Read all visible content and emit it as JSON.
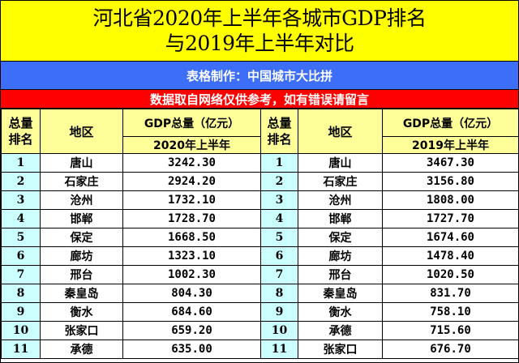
{
  "title": {
    "line1": "河北省2020年上半年各城市GDP排名",
    "line2": "与2019年上半年对比"
  },
  "credit": "表格制作：中国城市大比拼",
  "note": "数据取自网络仅供参考，如有错误请留言",
  "colors": {
    "title_bg": "#ffff00",
    "credit_bg": "#3d6ef7",
    "note_bg": "#ff0000",
    "header_bg": "#ffff99",
    "rank_bg": "#ccffff"
  },
  "left": {
    "headers": {
      "rank_line1": "总量",
      "rank_line2": "排名",
      "region": "地区",
      "gdp": "GDP总量（亿元）",
      "period": "2020年上半年"
    },
    "rows": [
      {
        "rank": "1",
        "city": "唐山",
        "value": "3242.30"
      },
      {
        "rank": "2",
        "city": "石家庄",
        "value": "2924.20"
      },
      {
        "rank": "3",
        "city": "沧州",
        "value": "1732.10"
      },
      {
        "rank": "4",
        "city": "邯郸",
        "value": "1728.70"
      },
      {
        "rank": "5",
        "city": "保定",
        "value": "1668.50"
      },
      {
        "rank": "6",
        "city": "廊坊",
        "value": "1323.10"
      },
      {
        "rank": "7",
        "city": "邢台",
        "value": "1002.30"
      },
      {
        "rank": "8",
        "city": "秦皇岛",
        "value": "804.30"
      },
      {
        "rank": "9",
        "city": "衡水",
        "value": "684.60"
      },
      {
        "rank": "10",
        "city": "张家口",
        "value": "659.20"
      },
      {
        "rank": "11",
        "city": "承德",
        "value": "635.00"
      }
    ]
  },
  "right": {
    "headers": {
      "rank_line1": "总量",
      "rank_line2": "排名",
      "region": "地区",
      "gdp": "GDP总量（亿元）",
      "period": "2019年上半年"
    },
    "rows": [
      {
        "rank": "1",
        "city": "唐山",
        "value": "3467.30"
      },
      {
        "rank": "2",
        "city": "石家庄",
        "value": "3156.80"
      },
      {
        "rank": "3",
        "city": "沧州",
        "value": "1808.00"
      },
      {
        "rank": "4",
        "city": "邯郸",
        "value": "1727.70"
      },
      {
        "rank": "5",
        "city": "保定",
        "value": "1674.60"
      },
      {
        "rank": "6",
        "city": "廊坊",
        "value": "1478.40"
      },
      {
        "rank": "7",
        "city": "邢台",
        "value": "1020.50"
      },
      {
        "rank": "8",
        "city": "秦皇岛",
        "value": "831.70"
      },
      {
        "rank": "9",
        "city": "衡水",
        "value": "758.10"
      },
      {
        "rank": "10",
        "city": "承德",
        "value": "715.60"
      },
      {
        "rank": "11",
        "city": "张家口",
        "value": "676.70"
      }
    ]
  }
}
